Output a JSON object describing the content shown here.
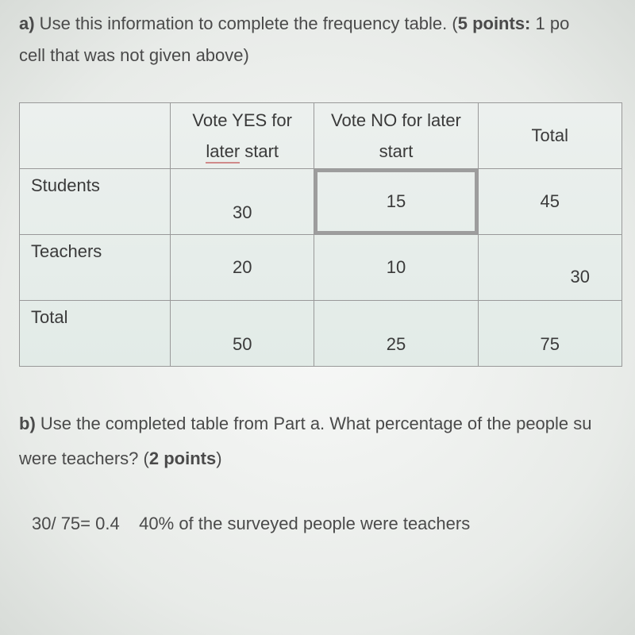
{
  "partA": {
    "label": "a)",
    "text1": " Use this information to complete the frequency table. (",
    "points_bold": "5 points:",
    "text2": " 1 po",
    "text3": "cell that was not given above)"
  },
  "table": {
    "headers": {
      "yes_line1": "Vote YES for",
      "yes_later": "later",
      "yes_start": " start",
      "no_line1": "Vote NO for later",
      "no_line2": "start",
      "total": "Total"
    },
    "rows": {
      "students": {
        "label": "Students",
        "yes": "30",
        "no": "15",
        "total": "45"
      },
      "teachers": {
        "label": "Teachers",
        "yes": "20",
        "no": "10",
        "total": "30"
      },
      "total": {
        "label": "Total",
        "yes": "50",
        "no": "25",
        "total": "75"
      }
    }
  },
  "partB": {
    "label": "b)",
    "text1": " Use the completed table from Part a. What percentage of the people su",
    "text2": "were teachers? (",
    "points_bold": "2 points",
    "text3": ")"
  },
  "answerB": {
    "calc": "30/ 75= 0.4",
    "gap": "    ",
    "statement": "40%  of the surveyed people were teachers"
  },
  "style": {
    "selected_cell_border": "#9d9d9d",
    "later_underline_color": "#d08a8a"
  }
}
